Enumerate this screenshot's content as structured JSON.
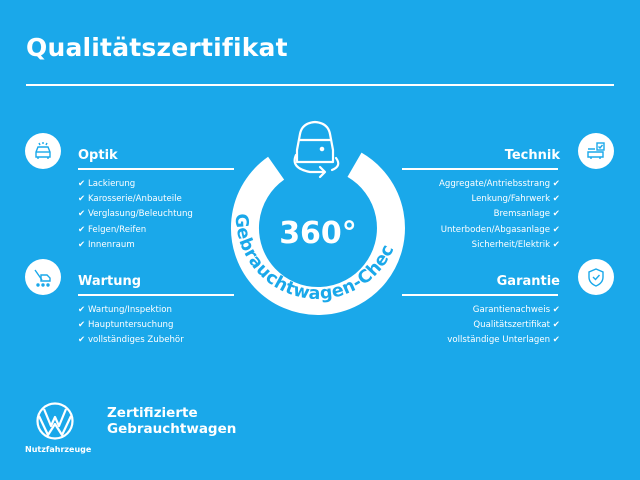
{
  "title": "Qualitätszertifikat",
  "colors": {
    "background": "#1aa8ea",
    "foreground": "#ffffff"
  },
  "badge": {
    "number": "360°",
    "arc_text": "Gebrauchtwagen-Check",
    "icon": "car-rotate-icon"
  },
  "check_mark": "✔",
  "sections": {
    "optik": {
      "title": "Optik",
      "icon": "car-lights-icon",
      "items": [
        "Lackierung",
        "Karosserie/Anbauteile",
        "Verglasung/Beleuchtung",
        "Felgen/Reifen",
        "Innenraum"
      ]
    },
    "wartung": {
      "title": "Wartung",
      "icon": "van-tools-icon",
      "items": [
        "Wartung/Inspektion",
        "Hauptuntersuchung",
        "vollständiges Zubehör"
      ]
    },
    "technik": {
      "title": "Technik",
      "icon": "engine-check-icon",
      "items": [
        "Aggregate/Antriebsstrang",
        "Lenkung/Fahrwerk",
        "Bremsanlage",
        "Unterboden/Abgasanlage",
        "Sicherheit/Elektrik"
      ]
    },
    "garantie": {
      "title": "Garantie",
      "icon": "shield-check-icon",
      "items": [
        "Garantienachweis",
        "Qualitätszertifikat",
        "vollständige Unterlagen"
      ]
    }
  },
  "footer": {
    "brand_line1": "Zertifizierte",
    "brand_line2": "Gebrauchtwagen",
    "logo_caption": "Nutzfahrzeuge",
    "logo": "vw-logo"
  }
}
